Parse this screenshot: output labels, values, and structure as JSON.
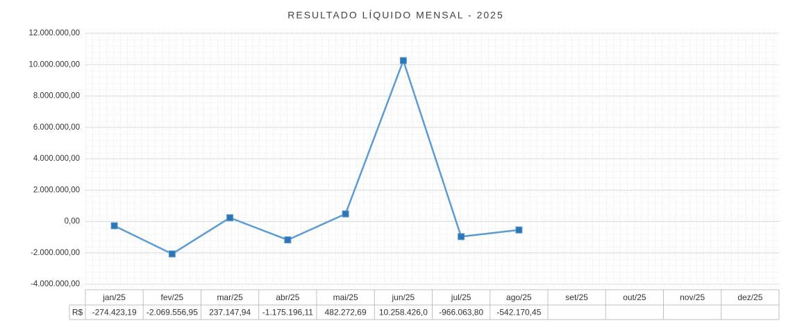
{
  "chart_data": {
    "type": "line",
    "title": "RESULTADO LÍQUIDO MENSAL - 2025",
    "categories": [
      "jan/25",
      "fev/25",
      "mar/25",
      "abr/25",
      "mai/25",
      "jun/25",
      "jul/25",
      "ago/25",
      "set/25",
      "out/25",
      "nov/25",
      "dez/25"
    ],
    "series": [
      {
        "name": "R$",
        "color": "#5b9bd5",
        "marker_color": "#2e75b6",
        "values": [
          -274423.19,
          -2069556.95,
          237147.94,
          -1175196.11,
          482272.69,
          10258426.0,
          -966063.8,
          -542170.45,
          null,
          null,
          null,
          null
        ],
        "value_labels": [
          "-274.423,19",
          "-2.069.556,95",
          "237.147,94",
          "-1.175.196,11",
          "482.272,69",
          "10.258.426,0",
          "-966.063,80",
          "-542.170,45",
          null,
          null,
          null,
          null
        ]
      }
    ],
    "ylim": [
      -4000000,
      12000000
    ],
    "yticks": [
      {
        "value": -4000000,
        "label": "-4.000.000,00"
      },
      {
        "value": -2000000,
        "label": "-2.000.000,00"
      },
      {
        "value": 0,
        "label": "0,00"
      },
      {
        "value": 2000000,
        "label": "2.000.000,00"
      },
      {
        "value": 4000000,
        "label": "4.000.000,00"
      },
      {
        "value": 6000000,
        "label": "6.000.000,00"
      },
      {
        "value": 8000000,
        "label": "8.000.000,00"
      },
      {
        "value": 10000000,
        "label": "10.000.000,00"
      },
      {
        "value": 12000000,
        "label": "12.000.000,00"
      }
    ],
    "grid": true
  }
}
